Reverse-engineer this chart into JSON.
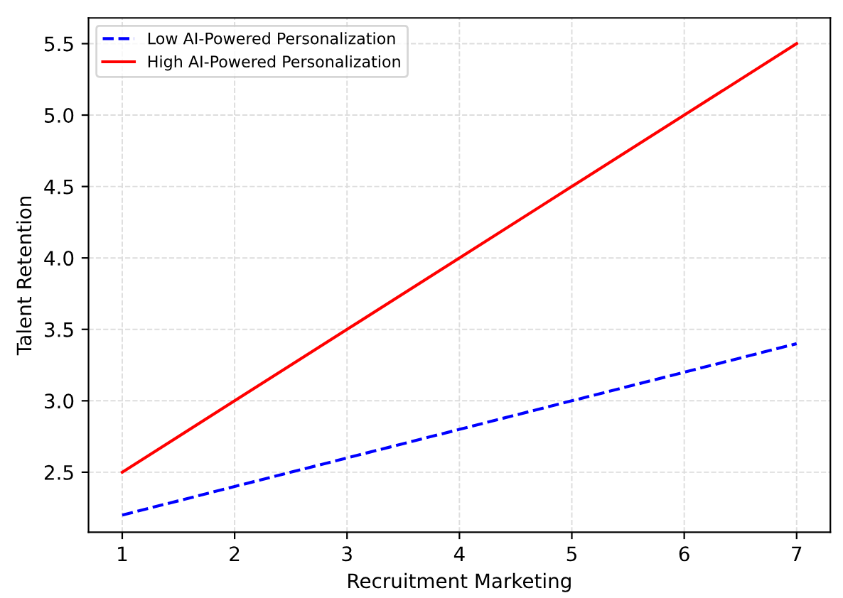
{
  "chart_data": {
    "type": "line",
    "xlabel": "Recruitment Marketing",
    "ylabel": "Talent Retention",
    "x": [
      1,
      2,
      3,
      4,
      5,
      6,
      7
    ],
    "series": [
      {
        "name": "Low AI-Powered Personalization",
        "color": "#0000ff",
        "line_style": "dashed",
        "values": [
          2.2,
          2.4,
          2.6,
          2.8,
          3.0,
          3.2,
          3.4
        ]
      },
      {
        "name": "High AI-Powered Personalization",
        "color": "#ff0000",
        "line_style": "solid",
        "values": [
          2.5,
          3.0,
          3.5,
          4.0,
          4.5,
          5.0,
          5.5
        ]
      }
    ],
    "xlim": [
      0.7,
      7.3
    ],
    "ylim": [
      2.08,
      5.68
    ],
    "xticks": [
      1,
      2,
      3,
      4,
      5,
      6,
      7
    ],
    "yticks": [
      {
        "value": 2.5,
        "label": "2.5"
      },
      {
        "value": 3.0,
        "label": "3.0"
      },
      {
        "value": 3.5,
        "label": "3.5"
      },
      {
        "value": 4.0,
        "label": "4.0"
      },
      {
        "value": 4.5,
        "label": "4.5"
      },
      {
        "value": 5.0,
        "label": "5.0"
      },
      {
        "value": 5.5,
        "label": "5.5"
      }
    ],
    "grid": true,
    "legend": "top left",
    "marker": "none"
  }
}
